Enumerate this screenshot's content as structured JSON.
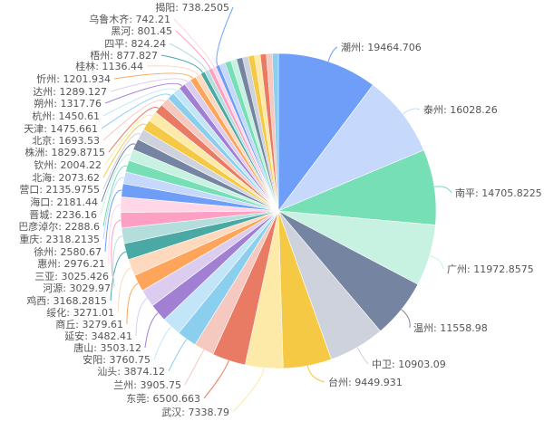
{
  "chart_data": {
    "type": "pie",
    "title": "",
    "legend": "none",
    "label_format": "{name}: {value}",
    "palette": [
      "#6e9ef8",
      "#c6d8fb",
      "#76dfb5",
      "#c7f1e1",
      "#7584a1",
      "#cdd2dc",
      "#f6c945",
      "#fde9a8",
      "#e97b64",
      "#f5c9bf",
      "#8bcfef",
      "#c2e6f7",
      "#a17fd3",
      "#dccdf0",
      "#fea55b",
      "#ffd9be",
      "#4aa8a5",
      "#b4dedc",
      "#fe9fc4",
      "#ffd7e6"
    ],
    "slices": [
      {
        "name": "潮州",
        "value": 19464.706
      },
      {
        "name": "泰州",
        "value": 16028.26
      },
      {
        "name": "南平",
        "value": 14705.8225
      },
      {
        "name": "广州",
        "value": 11972.8575
      },
      {
        "name": "温州",
        "value": 11558.98
      },
      {
        "name": "中卫",
        "value": 10903.09
      },
      {
        "name": "台州",
        "value": 9449.931
      },
      {
        "name": "武汉",
        "value": 7338.79
      },
      {
        "name": "东莞",
        "value": 6500.663
      },
      {
        "name": "兰州",
        "value": 3905.75
      },
      {
        "name": "汕头",
        "value": 3874.12
      },
      {
        "name": "安阳",
        "value": 3760.75
      },
      {
        "name": "唐山",
        "value": 3503.12
      },
      {
        "name": "延安",
        "value": 3482.41
      },
      {
        "name": "商丘",
        "value": 3279.61
      },
      {
        "name": "绥化",
        "value": 3271.01
      },
      {
        "name": "鸡西",
        "value": 3168.2815
      },
      {
        "name": "河源",
        "value": 3029.97
      },
      {
        "name": "三亚",
        "value": 3025.426
      },
      {
        "name": "惠州",
        "value": 2976.21
      },
      {
        "name": "徐州",
        "value": 2580.67
      },
      {
        "name": "重庆",
        "value": 2318.2135
      },
      {
        "name": "巴彦淖尔",
        "value": 2288.6
      },
      {
        "name": "晋城",
        "value": 2236.16
      },
      {
        "name": "海口",
        "value": 2181.44
      },
      {
        "name": "营口",
        "value": 2135.9755
      },
      {
        "name": "北海",
        "value": 2073.62
      },
      {
        "name": "钦州",
        "value": 2004.22
      },
      {
        "name": "株洲",
        "value": 1829.8715
      },
      {
        "name": "北京",
        "value": 1693.53
      },
      {
        "name": "天津",
        "value": 1475.661
      },
      {
        "name": "杭州",
        "value": 1450.61
      },
      {
        "name": "朔州",
        "value": 1317.76
      },
      {
        "name": "达州",
        "value": 1289.127
      },
      {
        "name": "忻州",
        "value": 1201.934
      },
      {
        "name": "桂林",
        "value": 1136.44
      },
      {
        "name": "梧州",
        "value": 877.827
      },
      {
        "name": "四平",
        "value": 824.24
      },
      {
        "name": "黑河",
        "value": 801.45
      },
      {
        "name": "乌鲁木齐",
        "value": 742.21
      },
      {
        "name": "揭阳",
        "value": 738.2505
      }
    ]
  }
}
